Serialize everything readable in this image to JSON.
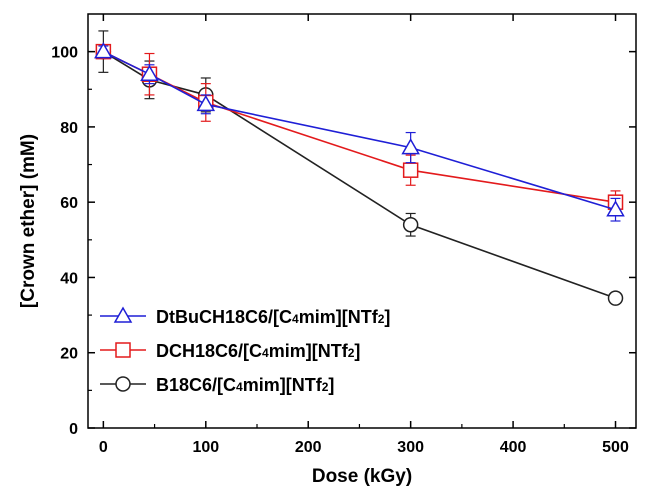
{
  "chart_data": {
    "type": "line",
    "title": "",
    "xlabel": "Dose (kGy)",
    "ylabel": "[Crown ether] (mM)",
    "xlim": [
      -15,
      520
    ],
    "ylim": [
      0,
      110
    ],
    "xticks": [
      0,
      100,
      200,
      300,
      400,
      500
    ],
    "yticks": [
      0,
      20,
      40,
      60,
      80,
      100
    ],
    "grid": false,
    "legend": "bottom-left",
    "series": [
      {
        "name_parts": [
          "DtBuCH18C6/[C",
          "4",
          "mim][NTf",
          "2",
          "]"
        ],
        "marker": "triangle",
        "color": "#1f1fd6",
        "x": [
          0,
          45,
          100,
          300,
          500
        ],
        "y": [
          100,
          94,
          86,
          74.5,
          58
        ],
        "err": [
          1.5,
          2.5,
          2.5,
          4,
          3
        ]
      },
      {
        "name_parts": [
          "DCH18C6/[C",
          "4",
          "mim][NTf",
          "2",
          "]"
        ],
        "marker": "square",
        "color": "#e31a1c",
        "x": [
          0,
          45,
          100,
          300,
          500
        ],
        "y": [
          100,
          94,
          86.5,
          68.5,
          60
        ],
        "err": [
          1.5,
          5.5,
          5,
          4,
          3
        ]
      },
      {
        "name_parts": [
          "B18C6/[C",
          "4",
          "mim][NTf",
          "2",
          "]"
        ],
        "marker": "circle",
        "color": "#222222",
        "x": [
          0,
          45,
          100,
          300,
          500
        ],
        "y": [
          100,
          92.5,
          88.5,
          54,
          34.5
        ],
        "err": [
          5.5,
          5,
          4.5,
          3,
          1
        ]
      }
    ]
  }
}
